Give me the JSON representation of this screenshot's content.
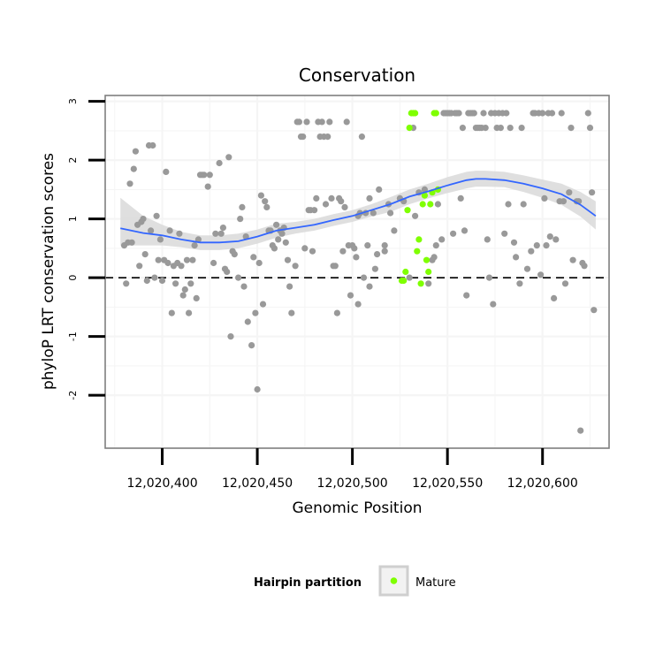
{
  "chart_data": {
    "type": "scatter",
    "title": "Conservation",
    "xlabel": "Genomic Position",
    "ylabel": "phyloP LRT conservation scores",
    "xlim": [
      12020370,
      12020635
    ],
    "ylim": [
      -2.9,
      3.1
    ],
    "x_ticks": [
      12020400,
      12020450,
      12020500,
      12020550,
      12020600
    ],
    "x_tick_labels": [
      "12,020,400",
      "12,020,450",
      "12,020,500",
      "12,020,550",
      "12,020,600"
    ],
    "y_ticks": [
      -2,
      -1,
      0,
      1,
      2,
      3
    ],
    "y_tick_labels": [
      "-2",
      "-1",
      "0",
      "1",
      "2",
      "3"
    ],
    "reference_line": {
      "y": 0,
      "style": "dashed"
    },
    "legend": {
      "title": "Hairpin partition",
      "entries": [
        {
          "label": "Mature",
          "color": "#7fff00"
        }
      ]
    },
    "colors": {
      "default": "#999999",
      "mature": "#7fff00",
      "smooth": "#3366ff",
      "band": "#d9d9d9",
      "grid": "#f5f5f5"
    },
    "series": [
      {
        "name": "Hairpin",
        "color": "#999999",
        "points": [
          [
            12020380,
            0.55
          ],
          [
            12020381,
            -0.1
          ],
          [
            12020382,
            0.6
          ],
          [
            12020383,
            1.6
          ],
          [
            12020384,
            0.6
          ],
          [
            12020385,
            1.85
          ],
          [
            12020386,
            2.15
          ],
          [
            12020387,
            0.9
          ],
          [
            12020388,
            0.2
          ],
          [
            12020389,
            0.95
          ],
          [
            12020390,
            1.0
          ],
          [
            12020391,
            0.4
          ],
          [
            12020392,
            -0.05
          ],
          [
            12020393,
            2.25
          ],
          [
            12020394,
            0.8
          ],
          [
            12020395,
            2.25
          ],
          [
            12020396,
            0.0
          ],
          [
            12020397,
            1.05
          ],
          [
            12020398,
            0.3
          ],
          [
            12020399,
            0.65
          ],
          [
            12020400,
            -0.05
          ],
          [
            12020401,
            0.3
          ],
          [
            12020402,
            1.8
          ],
          [
            12020403,
            0.25
          ],
          [
            12020404,
            0.8
          ],
          [
            12020405,
            -0.6
          ],
          [
            12020406,
            0.2
          ],
          [
            12020407,
            -0.1
          ],
          [
            12020408,
            0.25
          ],
          [
            12020409,
            0.75
          ],
          [
            12020410,
            0.2
          ],
          [
            12020411,
            -0.3
          ],
          [
            12020412,
            -0.2
          ],
          [
            12020413,
            0.3
          ],
          [
            12020414,
            -0.6
          ],
          [
            12020415,
            -0.1
          ],
          [
            12020416,
            0.3
          ],
          [
            12020417,
            0.55
          ],
          [
            12020418,
            -0.35
          ],
          [
            12020419,
            0.65
          ],
          [
            12020420,
            1.75
          ],
          [
            12020421,
            1.75
          ],
          [
            12020422,
            1.75
          ],
          [
            12020424,
            1.55
          ],
          [
            12020425,
            1.75
          ],
          [
            12020427,
            0.25
          ],
          [
            12020428,
            0.75
          ],
          [
            12020430,
            1.95
          ],
          [
            12020431,
            0.75
          ],
          [
            12020432,
            0.85
          ],
          [
            12020433,
            0.15
          ],
          [
            12020434,
            0.1
          ],
          [
            12020435,
            2.05
          ],
          [
            12020436,
            -1.0
          ],
          [
            12020437,
            0.45
          ],
          [
            12020438,
            0.4
          ],
          [
            12020440,
            0.0
          ],
          [
            12020441,
            1.0
          ],
          [
            12020442,
            1.2
          ],
          [
            12020443,
            -0.15
          ],
          [
            12020444,
            0.7
          ],
          [
            12020445,
            -0.75
          ],
          [
            12020447,
            -1.15
          ],
          [
            12020448,
            0.35
          ],
          [
            12020449,
            -0.6
          ],
          [
            12020450,
            -1.9
          ],
          [
            12020451,
            0.25
          ],
          [
            12020452,
            1.4
          ],
          [
            12020453,
            -0.45
          ],
          [
            12020454,
            1.3
          ],
          [
            12020455,
            1.2
          ],
          [
            12020456,
            0.8
          ],
          [
            12020457,
            0.8
          ],
          [
            12020458,
            0.55
          ],
          [
            12020459,
            0.5
          ],
          [
            12020460,
            0.9
          ],
          [
            12020461,
            0.65
          ],
          [
            12020462,
            0.8
          ],
          [
            12020463,
            0.75
          ],
          [
            12020464,
            0.85
          ],
          [
            12020465,
            0.6
          ],
          [
            12020466,
            0.3
          ],
          [
            12020467,
            -0.15
          ],
          [
            12020468,
            -0.6
          ],
          [
            12020470,
            0.2
          ],
          [
            12020471,
            2.65
          ],
          [
            12020472,
            2.65
          ],
          [
            12020473,
            2.4
          ],
          [
            12020474,
            2.4
          ],
          [
            12020475,
            0.5
          ],
          [
            12020476,
            2.65
          ],
          [
            12020477,
            1.15
          ],
          [
            12020478,
            1.15
          ],
          [
            12020479,
            0.45
          ],
          [
            12020480,
            1.15
          ],
          [
            12020481,
            1.35
          ],
          [
            12020482,
            2.65
          ],
          [
            12020483,
            2.4
          ],
          [
            12020484,
            2.65
          ],
          [
            12020485,
            2.4
          ],
          [
            12020486,
            1.25
          ],
          [
            12020487,
            2.4
          ],
          [
            12020488,
            2.65
          ],
          [
            12020489,
            1.35
          ],
          [
            12020490,
            0.2
          ],
          [
            12020491,
            0.2
          ],
          [
            12020492,
            -0.6
          ],
          [
            12020493,
            1.35
          ],
          [
            12020494,
            1.3
          ],
          [
            12020495,
            0.45
          ],
          [
            12020496,
            1.2
          ],
          [
            12020497,
            2.65
          ],
          [
            12020498,
            0.55
          ],
          [
            12020499,
            -0.3
          ],
          [
            12020500,
            0.55
          ],
          [
            12020501,
            0.5
          ],
          [
            12020502,
            0.35
          ],
          [
            12020503,
            -0.45
          ],
          [
            12020504,
            1.1
          ],
          [
            12020505,
            2.4
          ],
          [
            12020506,
            0.0
          ],
          [
            12020507,
            1.1
          ],
          [
            12020508,
            0.55
          ],
          [
            12020509,
            1.35
          ],
          [
            12020512,
            0.15
          ],
          [
            12020513,
            0.4
          ],
          [
            12020517,
            0.45
          ],
          [
            12020519,
            1.25
          ],
          [
            12020525,
            1.35
          ],
          [
            12020527,
            1.3
          ],
          [
            12020530,
            0.0
          ],
          [
            12020532,
            2.55
          ],
          [
            12020535,
            1.45
          ],
          [
            12020540,
            -0.1
          ],
          [
            12020542,
            0.3
          ],
          [
            12020543,
            0.35
          ],
          [
            12020544,
            0.55
          ],
          [
            12020545,
            1.25
          ],
          [
            12020547,
            0.65
          ],
          [
            12020548,
            2.8
          ],
          [
            12020549,
            2.8
          ],
          [
            12020550,
            2.8
          ],
          [
            12020551,
            2.8
          ],
          [
            12020552,
            2.8
          ],
          [
            12020553,
            0.75
          ],
          [
            12020554,
            2.8
          ],
          [
            12020555,
            2.8
          ],
          [
            12020556,
            2.8
          ],
          [
            12020557,
            1.35
          ],
          [
            12020558,
            2.55
          ],
          [
            12020559,
            0.8
          ],
          [
            12020560,
            -0.3
          ],
          [
            12020561,
            2.8
          ],
          [
            12020562,
            2.8
          ],
          [
            12020563,
            2.8
          ],
          [
            12020564,
            2.8
          ],
          [
            12020565,
            2.55
          ],
          [
            12020566,
            2.55
          ],
          [
            12020567,
            2.55
          ],
          [
            12020568,
            2.55
          ],
          [
            12020569,
            2.8
          ],
          [
            12020570,
            2.55
          ],
          [
            12020571,
            0.65
          ],
          [
            12020572,
            0.0
          ],
          [
            12020573,
            2.8
          ],
          [
            12020574,
            -0.45
          ],
          [
            12020575,
            2.8
          ],
          [
            12020576,
            2.55
          ],
          [
            12020577,
            2.8
          ],
          [
            12020578,
            2.55
          ],
          [
            12020579,
            2.8
          ],
          [
            12020580,
            0.75
          ],
          [
            12020581,
            2.8
          ],
          [
            12020582,
            1.25
          ],
          [
            12020583,
            2.55
          ],
          [
            12020585,
            0.6
          ],
          [
            12020586,
            0.35
          ],
          [
            12020588,
            -0.1
          ],
          [
            12020589,
            2.55
          ],
          [
            12020590,
            1.25
          ],
          [
            12020592,
            0.15
          ],
          [
            12020594,
            0.45
          ],
          [
            12020595,
            2.8
          ],
          [
            12020596,
            2.8
          ],
          [
            12020597,
            0.55
          ],
          [
            12020598,
            2.8
          ],
          [
            12020599,
            0.05
          ],
          [
            12020600,
            2.8
          ],
          [
            12020601,
            1.35
          ],
          [
            12020602,
            0.55
          ],
          [
            12020603,
            2.8
          ],
          [
            12020604,
            0.7
          ],
          [
            12020605,
            2.8
          ],
          [
            12020606,
            -0.35
          ],
          [
            12020607,
            0.65
          ],
          [
            12020609,
            1.3
          ],
          [
            12020610,
            2.8
          ],
          [
            12020611,
            1.3
          ],
          [
            12020612,
            -0.1
          ],
          [
            12020614,
            1.45
          ],
          [
            12020615,
            2.55
          ],
          [
            12020616,
            0.3
          ],
          [
            12020618,
            1.3
          ],
          [
            12020619,
            1.3
          ],
          [
            12020620,
            -2.6
          ],
          [
            12020621,
            0.25
          ],
          [
            12020622,
            0.2
          ],
          [
            12020624,
            2.8
          ],
          [
            12020625,
            2.55
          ],
          [
            12020626,
            1.45
          ],
          [
            12020627,
            -0.55
          ],
          [
            12020509,
            -0.15
          ],
          [
            12020511,
            1.1
          ],
          [
            12020520,
            1.1
          ],
          [
            12020522,
            0.8
          ],
          [
            12020503,
            1.05
          ],
          [
            12020514,
            1.5
          ],
          [
            12020517,
            0.55
          ],
          [
            12020533,
            1.05
          ],
          [
            12020538,
            1.5
          ]
        ]
      },
      {
        "name": "Mature",
        "color": "#7fff00",
        "points": [
          [
            12020526,
            -0.05
          ],
          [
            12020527,
            -0.05
          ],
          [
            12020528,
            0.1
          ],
          [
            12020529,
            1.15
          ],
          [
            12020530,
            2.55
          ],
          [
            12020531,
            2.8
          ],
          [
            12020532,
            2.8
          ],
          [
            12020533,
            2.8
          ],
          [
            12020534,
            0.45
          ],
          [
            12020535,
            0.65
          ],
          [
            12020536,
            -0.1
          ],
          [
            12020537,
            1.25
          ],
          [
            12020538,
            1.4
          ],
          [
            12020539,
            0.3
          ],
          [
            12020540,
            0.1
          ],
          [
            12020541,
            1.25
          ],
          [
            12020542,
            1.45
          ],
          [
            12020543,
            2.8
          ],
          [
            12020544,
            2.8
          ],
          [
            12020545,
            1.5
          ]
        ]
      }
    ],
    "smooth": {
      "x": [
        12020378,
        12020390,
        12020400,
        12020410,
        12020420,
        12020430,
        12020440,
        12020450,
        12020460,
        12020470,
        12020480,
        12020490,
        12020500,
        12020510,
        12020520,
        12020530,
        12020540,
        12020550,
        12020560,
        12020565,
        12020570,
        12020580,
        12020590,
        12020600,
        12020610,
        12020620,
        12020628
      ],
      "y": [
        0.84,
        0.76,
        0.72,
        0.65,
        0.6,
        0.6,
        0.62,
        0.7,
        0.8,
        0.85,
        0.9,
        0.98,
        1.05,
        1.15,
        1.25,
        1.38,
        1.47,
        1.57,
        1.66,
        1.68,
        1.68,
        1.66,
        1.6,
        1.52,
        1.42,
        1.24,
        1.05
      ],
      "lower": [
        0.55,
        0.55,
        0.55,
        0.52,
        0.47,
        0.47,
        0.5,
        0.58,
        0.68,
        0.75,
        0.8,
        0.88,
        0.95,
        1.04,
        1.12,
        1.25,
        1.35,
        1.44,
        1.52,
        1.55,
        1.55,
        1.54,
        1.46,
        1.36,
        1.24,
        1.04,
        0.82
      ],
      "upper": [
        1.36,
        1.05,
        0.9,
        0.78,
        0.72,
        0.72,
        0.75,
        0.82,
        0.92,
        0.95,
        1.0,
        1.08,
        1.15,
        1.25,
        1.37,
        1.5,
        1.6,
        1.71,
        1.8,
        1.82,
        1.82,
        1.8,
        1.74,
        1.67,
        1.6,
        1.46,
        1.3
      ]
    }
  }
}
